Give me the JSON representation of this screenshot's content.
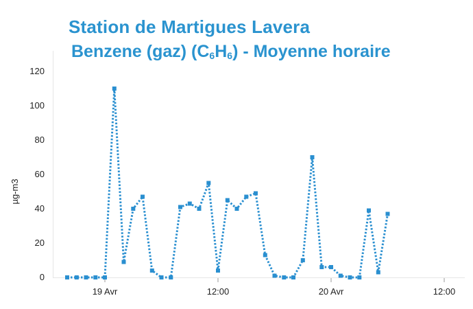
{
  "title": "Station de Martigues Lavera",
  "subtitle": {
    "prefix": "Benzene (gaz) (C",
    "sub1": "6",
    "mid": "H",
    "sub2": "6",
    "suffix": ") - Moyenne horaire"
  },
  "chart_data": {
    "type": "line",
    "title": "Station de Martigues Lavera",
    "subtitle": "Benzene (gaz) (C6H6) - Moyenne horaire",
    "ylabel": "µg-m3",
    "xlabel": "",
    "ylim": [
      0,
      120
    ],
    "yticks": [
      0,
      20,
      40,
      60,
      80,
      100,
      120
    ],
    "x_unit": "hours since 00:00 on 19 Avr",
    "xlim": [
      -4.5,
      44
    ],
    "xticks": [
      {
        "value": 0,
        "label": "19 Avr"
      },
      {
        "value": 12,
        "label": "12:00"
      },
      {
        "value": 24,
        "label": "20 Avr"
      },
      {
        "value": 36,
        "label": "12:00"
      }
    ],
    "series": [
      {
        "name": "Benzene",
        "color": "#2a8fd0",
        "style": "dotted",
        "markers": "square",
        "x": [
          -4,
          -3,
          -2,
          -1,
          0,
          1,
          2,
          3,
          4,
          5,
          6,
          7,
          8,
          9,
          10,
          11,
          12,
          13,
          14,
          15,
          16,
          17,
          18,
          19,
          20,
          21,
          22,
          23,
          24,
          25,
          26,
          27,
          28,
          29,
          30
        ],
        "values": [
          0,
          0,
          0,
          0,
          0,
          110,
          9,
          40,
          47,
          4,
          0,
          0,
          41,
          43,
          40,
          55,
          4,
          45,
          40,
          47,
          49,
          13,
          1,
          0,
          0,
          10,
          70,
          6,
          6,
          1,
          0,
          0,
          39,
          3,
          37
        ]
      }
    ]
  }
}
